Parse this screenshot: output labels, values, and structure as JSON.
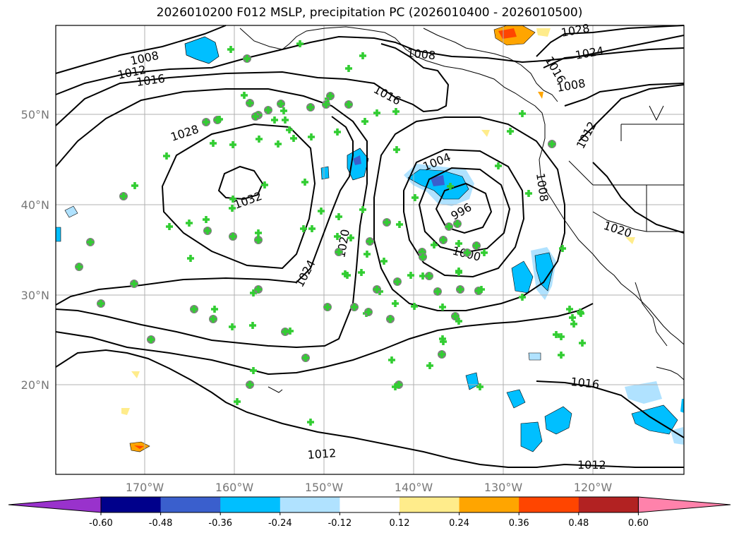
{
  "title": "2026010200 F012 MSLP, precipitation PC (2026010400 - 2026010500)",
  "lat_labels": [
    "50°N",
    "40°N",
    "30°N",
    "20°N"
  ],
  "lon_labels": [
    "170°W",
    "160°W",
    "150°W",
    "140°W",
    "130°W",
    "120°W"
  ],
  "contour_labels": [
    "1008",
    "1012",
    "1016",
    "1028",
    "1032",
    "1024",
    "1020",
    "1008",
    "1016",
    "1004",
    "996",
    "1000",
    "1008",
    "1028",
    "1024",
    "1016",
    "1008",
    "1012",
    "1020",
    "1016",
    "1012",
    "1012"
  ],
  "colorbar": {
    "ticks": [
      "-0.60",
      "-0.48",
      "-0.36",
      "-0.24",
      "-0.12",
      "0.12",
      "0.24",
      "0.36",
      "0.48",
      "0.60"
    ],
    "colors": [
      "#9932cc",
      "#00008b",
      "#3a5fcd",
      "#00bfff",
      "#b0e2ff",
      "#ffffff",
      "#ffec8b",
      "#ffa500",
      "#ff4500",
      "#b22222",
      "#ff82ab",
      "#ff82ab"
    ]
  },
  "colors": {
    "grid": "#b0b0b0",
    "marker_plus": "#32cd32",
    "marker_circle": "#808080"
  }
}
